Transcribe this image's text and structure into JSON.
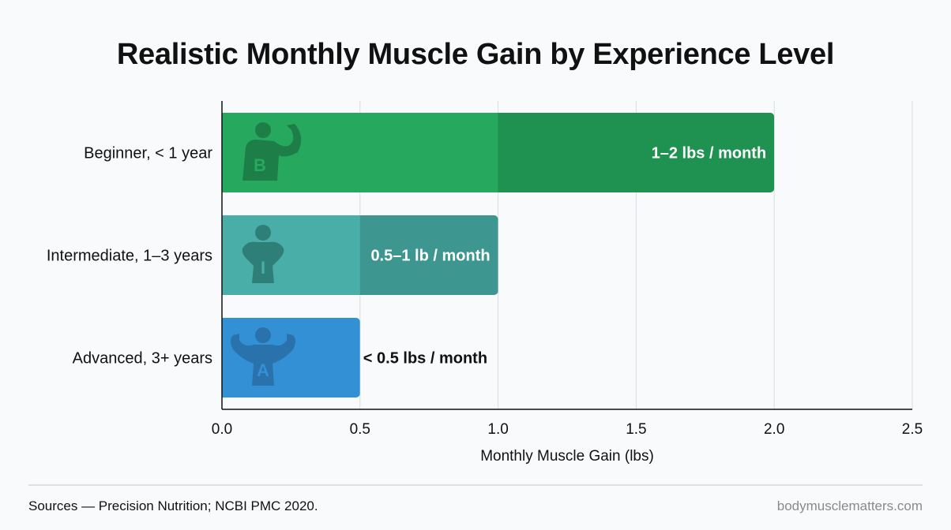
{
  "chart_data": {
    "type": "bar",
    "orientation": "horizontal",
    "title": "Realistic Monthly Muscle Gain by Experience Level",
    "xlabel": "Monthly Muscle Gain (lbs)",
    "ylabel": "",
    "xlim": [
      0,
      2.5
    ],
    "xticks": [
      "0.0",
      "0.5",
      "1.0",
      "1.5",
      "2.0",
      "2.5"
    ],
    "grid": "vertical",
    "categories": [
      "Beginner, < 1 year",
      "Intermediate, 1–3 years",
      "Advanced, 3+ years"
    ],
    "ranges": [
      [
        1,
        2
      ],
      [
        0.5,
        1
      ],
      [
        0,
        0.5
      ]
    ],
    "data_labels": [
      "1–2 lbs / month",
      "0.5–1 lb / month",
      "< 0.5 lbs / month"
    ],
    "icon_letters": [
      "B",
      "I",
      "A"
    ],
    "icons": [
      "flexing-one-arm-icon",
      "hands-on-hips-icon",
      "double-biceps-icon"
    ],
    "colors": {
      "light": [
        "#27a85f",
        "#4aaea8",
        "#3490d4"
      ],
      "dark": [
        "#1f9150",
        "#3d9690",
        "#3490d4"
      ],
      "icon": [
        "#1d7a45",
        "#2d7a74",
        "#2a6fa8"
      ]
    }
  },
  "footer": {
    "sources": "Sources — Precision Nutrition; NCBI PMC 2020.",
    "site": "bodymusclematters.com"
  }
}
